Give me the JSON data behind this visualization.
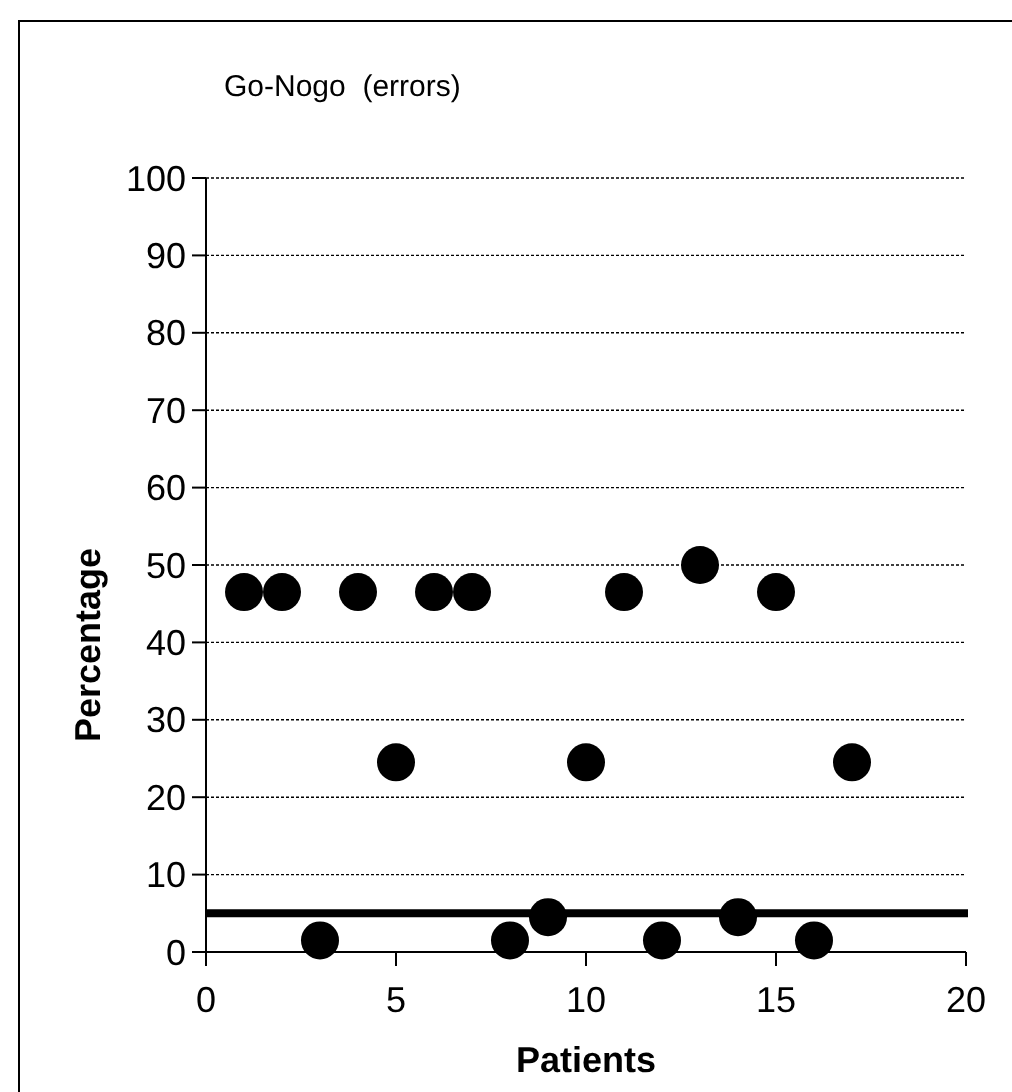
{
  "chart_data": {
    "type": "scatter",
    "title": "Go-Nogo  (errors)",
    "xlabel": "Patients",
    "ylabel": "Percentage",
    "x": [
      1,
      2,
      3,
      4,
      5,
      6,
      7,
      8,
      9,
      10,
      11,
      12,
      13,
      14,
      15,
      16,
      17
    ],
    "series": [
      {
        "color": "#000000",
        "values": [
          46.5,
          46.5,
          1.5,
          46.5,
          24.5,
          46.5,
          46.5,
          1.5,
          4.5,
          24.5,
          46.5,
          1.5,
          50,
          4.5,
          46.5,
          1.5,
          24.5
        ]
      }
    ],
    "xlim": [
      0,
      20
    ],
    "xticks": [
      0,
      5,
      10,
      15,
      20
    ],
    "ylim": [
      0,
      100
    ],
    "yticks": [
      0,
      10,
      20,
      30,
      40,
      50,
      60,
      70,
      80,
      90,
      100
    ],
    "grid": "y",
    "marker": "circle",
    "ref_lines": [
      {
        "axis": "y",
        "value": 5,
        "color": "#000000",
        "line_style": "solid"
      }
    ]
  }
}
